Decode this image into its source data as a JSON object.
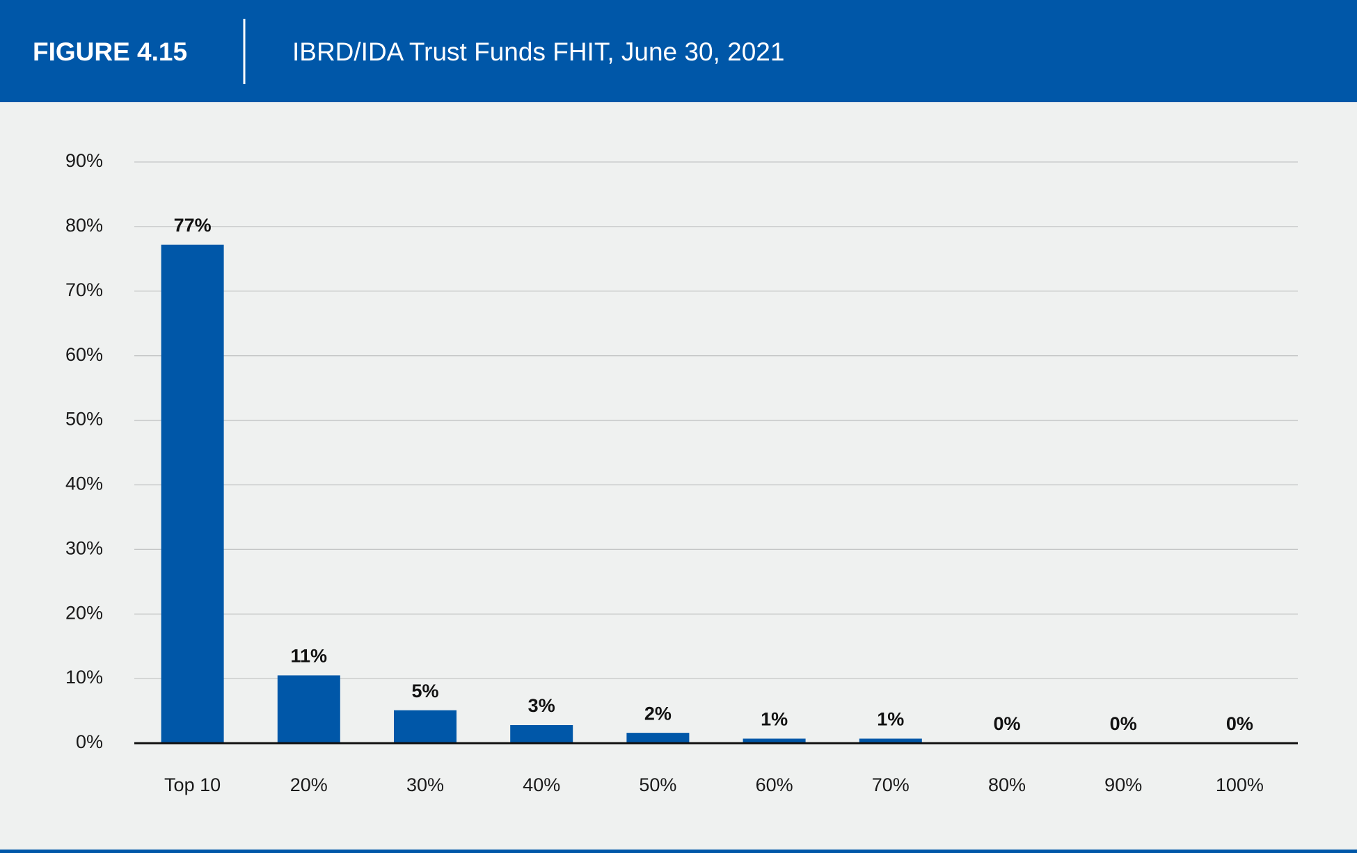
{
  "chart_data": {
    "type": "bar",
    "figure_label": "FIGURE 4.15",
    "title": "IBRD/IDA Trust Funds FHIT, June 30, 2021",
    "categories": [
      "Top 10",
      "20%",
      "30%",
      "40%",
      "50%",
      "60%",
      "70%",
      "80%",
      "90%",
      "100%"
    ],
    "values": [
      77.2,
      10.5,
      5.1,
      2.8,
      1.6,
      0.7,
      0.7,
      0,
      0,
      0
    ],
    "value_labels": [
      "77%",
      "11%",
      "5%",
      "3%",
      "2%",
      "1%",
      "1%",
      "0%",
      "0%",
      "0%"
    ],
    "color": "#0057a8",
    "ylim": [
      0,
      90
    ],
    "yticks": [
      {
        "value": 0,
        "label": "0%"
      },
      {
        "value": 10,
        "label": "10%"
      },
      {
        "value": 20,
        "label": "20%"
      },
      {
        "value": 30,
        "label": "30%"
      },
      {
        "value": 40,
        "label": "40%"
      },
      {
        "value": 50,
        "label": "50%"
      },
      {
        "value": 60,
        "label": "60%"
      },
      {
        "value": 70,
        "label": "70%"
      },
      {
        "value": 80,
        "label": "80%"
      },
      {
        "value": 90,
        "label": "90%"
      }
    ],
    "grid": true
  }
}
